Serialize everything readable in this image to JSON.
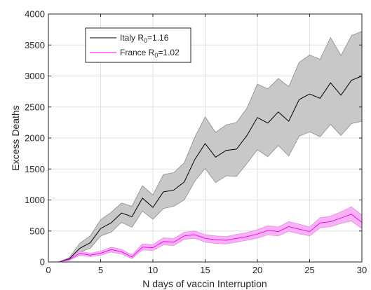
{
  "chart_data": {
    "type": "line",
    "title": "",
    "xlabel": "N days of vaccin Interruption",
    "ylabel": "Excess Deaths",
    "xlim": [
      0,
      30
    ],
    "ylim": [
      0,
      4000
    ],
    "xticks": [
      0,
      5,
      10,
      15,
      20,
      25,
      30
    ],
    "yticks": [
      0,
      500,
      1000,
      1500,
      2000,
      2500,
      3000,
      3500,
      4000
    ],
    "grid": true,
    "legend_position": "top-left",
    "series": [
      {
        "name": "Italy R0=1.16",
        "legend_main": "Italy R",
        "legend_sub": "0",
        "legend_rest": "=1.16",
        "color": "#000000",
        "band_color": "#c8c8c8",
        "band_edge_color": "#8c8c8c",
        "x": [
          1,
          2,
          3,
          4,
          5,
          6,
          7,
          8,
          9,
          10,
          11,
          12,
          13,
          14,
          15,
          16,
          17,
          18,
          19,
          20,
          21,
          22,
          23,
          24,
          25,
          26,
          27,
          28,
          29,
          30
        ],
        "y": [
          0,
          50,
          220,
          310,
          540,
          630,
          790,
          730,
          1030,
          880,
          1130,
          1160,
          1290,
          1650,
          1910,
          1690,
          1800,
          1820,
          2040,
          2330,
          2240,
          2420,
          2270,
          2620,
          2710,
          2640,
          2890,
          2690,
          2930,
          3000
        ],
        "lower": [
          0,
          30,
          160,
          220,
          420,
          480,
          640,
          560,
          820,
          690,
          860,
          900,
          1000,
          1300,
          1510,
          1280,
          1390,
          1380,
          1590,
          1810,
          1700,
          1880,
          1710,
          2030,
          2100,
          2020,
          2220,
          2040,
          2230,
          2270
        ],
        "upper": [
          0,
          70,
          300,
          420,
          680,
          800,
          950,
          900,
          1230,
          1080,
          1410,
          1440,
          1600,
          2010,
          2340,
          2090,
          2210,
          2250,
          2480,
          2870,
          2790,
          2960,
          2830,
          3220,
          3340,
          3270,
          3620,
          3330,
          3650,
          3720
        ]
      },
      {
        "name": "France R0=1.02",
        "legend_main": "France R",
        "legend_sub": "0",
        "legend_rest": "=1.02",
        "color": "#ff00ff",
        "band_color": "#f7b4f4",
        "band_edge_color": "#ee88ea",
        "x": [
          1,
          2,
          3,
          4,
          5,
          6,
          7,
          8,
          9,
          10,
          11,
          12,
          13,
          14,
          15,
          16,
          17,
          18,
          19,
          20,
          21,
          22,
          23,
          24,
          25,
          26,
          27,
          28,
          29,
          30
        ],
        "y": [
          0,
          40,
          140,
          110,
          140,
          200,
          165,
          80,
          240,
          230,
          330,
          320,
          420,
          440,
          380,
          360,
          350,
          380,
          410,
          450,
          510,
          490,
          570,
          530,
          490,
          630,
          650,
          710,
          770,
          640
        ],
        "lower": [
          0,
          25,
          110,
          85,
          110,
          160,
          130,
          55,
          195,
          185,
          275,
          265,
          365,
          385,
          320,
          300,
          290,
          320,
          350,
          385,
          440,
          420,
          495,
          455,
          420,
          550,
          570,
          620,
          660,
          540
        ],
        "upper": [
          0,
          55,
          175,
          140,
          175,
          240,
          205,
          110,
          290,
          280,
          390,
          380,
          480,
          500,
          440,
          420,
          410,
          445,
          475,
          520,
          585,
          565,
          650,
          610,
          565,
          715,
          740,
          810,
          890,
          760
        ]
      }
    ]
  }
}
